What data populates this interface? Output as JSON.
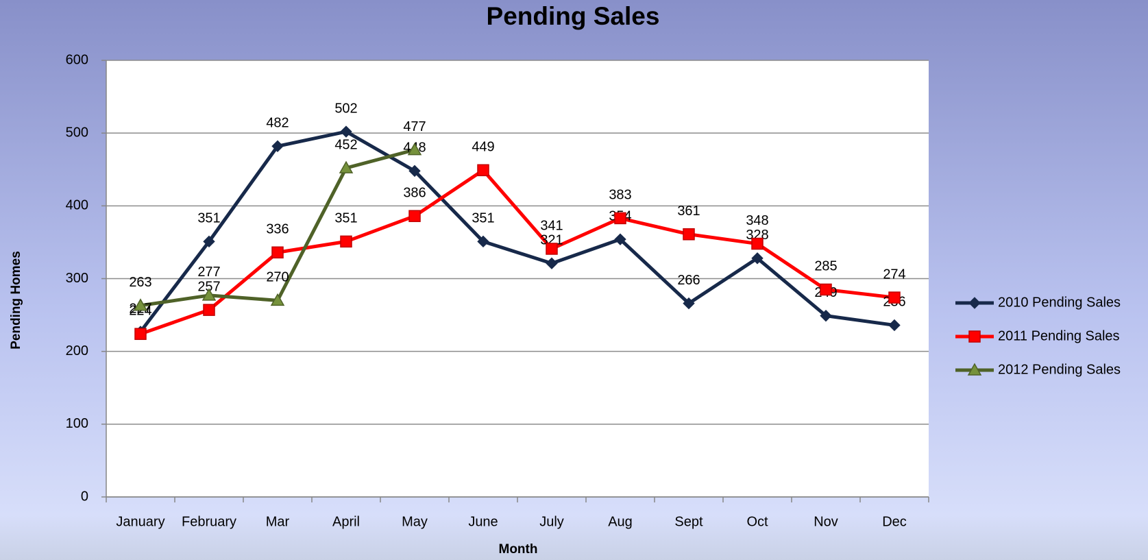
{
  "chart_data": {
    "type": "line",
    "title": "Pending Sales",
    "x_label": "Month",
    "y_label": "Pending Homes",
    "categories": [
      "January",
      "February",
      "Mar",
      "April",
      "May",
      "June",
      "July",
      "Aug",
      "Sept",
      "Oct",
      "Nov",
      "Dec"
    ],
    "series": [
      {
        "name": "2010 Pending Sales",
        "color": "#17294a",
        "marker": "diamond",
        "values": [
          227,
          351,
          482,
          502,
          448,
          351,
          321,
          354,
          266,
          328,
          249,
          236
        ]
      },
      {
        "name": "2011 Pending Sales",
        "color": "#ff0000",
        "marker": "square",
        "values": [
          224,
          257,
          336,
          351,
          386,
          449,
          341,
          383,
          361,
          348,
          285,
          274
        ]
      },
      {
        "name": "2012 Pending Sales",
        "color": "#4f6228",
        "marker": "triangle",
        "values": [
          263,
          277,
          270,
          452,
          477,
          null,
          null,
          null,
          null,
          null,
          null,
          null
        ]
      }
    ],
    "ylim": [
      0,
      600
    ],
    "yticks": [
      0,
      100,
      200,
      300,
      400,
      500,
      600
    ],
    "grid": true,
    "legend": "right"
  }
}
